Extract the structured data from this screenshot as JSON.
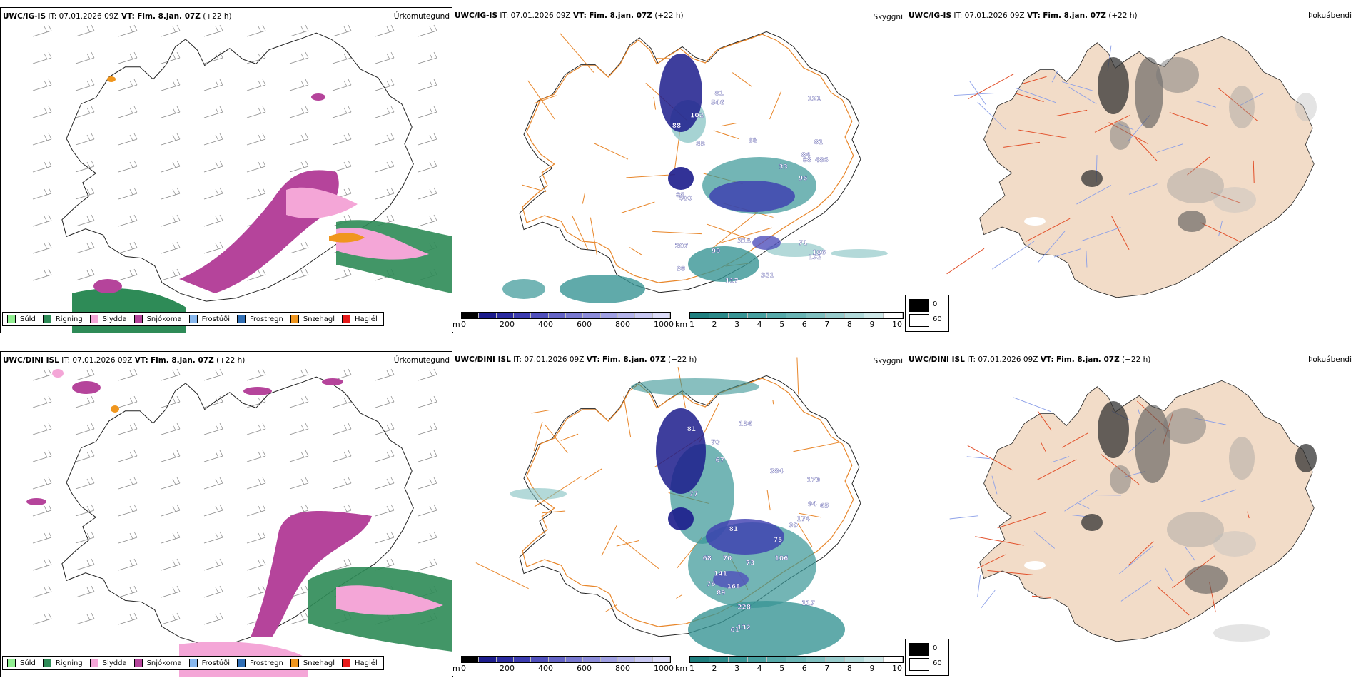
{
  "rows": [
    {
      "model": "UWC/IG-IS",
      "it_label": "IT:",
      "it_value": "07.01.2026 09Z",
      "vt_label": "VT:",
      "vt_value": "Fim. 8.jan. 07Z",
      "lead": "(+22 h)",
      "precip_title": "Úrkomutegund",
      "cloud_title": "Skyggni",
      "fog_title": "Þokuábendi",
      "ceiling_labels": [
        "71",
        "81",
        "106",
        "88",
        "88",
        "81",
        "84",
        "99",
        "121",
        "88",
        "486",
        "88",
        "96",
        "117",
        "207",
        "102",
        "132",
        "546",
        "314",
        "88",
        "88",
        "400",
        "351",
        "33"
      ]
    },
    {
      "model": "UWC/DINI ISL",
      "it_label": "IT:",
      "it_value": "07.01.2026 09Z",
      "vt_label": "VT:",
      "vt_value": "Fim. 8.jan. 07Z",
      "lead": "(+22 h)",
      "precip_title": "Úrkomutegund",
      "cloud_title": "Skyggni",
      "fog_title": "Þokuábendi",
      "ceiling_labels": [
        "70",
        "70",
        "68",
        "81",
        "73",
        "179",
        "89",
        "168",
        "384",
        "228",
        "76",
        "117",
        "81",
        "132",
        "174",
        "106",
        "141",
        "94",
        "136",
        "77",
        "61",
        "99",
        "67",
        "75",
        "65"
      ]
    }
  ],
  "precip_legend": [
    {
      "label": "Súld",
      "color": "#90ee90"
    },
    {
      "label": "Rigning",
      "color": "#2e8b57"
    },
    {
      "label": "Slydda",
      "color": "#f4a6d7"
    },
    {
      "label": "Snjókoma",
      "color": "#b5449b"
    },
    {
      "label": "Frostúði",
      "color": "#87b7ee"
    },
    {
      "label": "Frostregn",
      "color": "#2f6eb5"
    },
    {
      "label": "Snæhagl",
      "color": "#f0961e"
    },
    {
      "label": "Haglél",
      "color": "#e61919"
    }
  ],
  "ceiling_scale": {
    "unit": "m",
    "ticks": [
      "0",
      "200",
      "400",
      "600",
      "800",
      "1000"
    ],
    "colors": [
      "#000000",
      "#1c1c8c",
      "#2a2aa0",
      "#3c3cb0",
      "#5050bc",
      "#6464c6",
      "#7878d0",
      "#8c8cda",
      "#a0a0e2",
      "#b4b4ea",
      "#c8c8f2",
      "#dcdcf8"
    ]
  },
  "visibility_scale": {
    "unit": "km",
    "ticks": [
      "1",
      "2",
      "3",
      "4",
      "5",
      "6",
      "7",
      "8",
      "9",
      "10"
    ],
    "colors": [
      "#1f7f7f",
      "#2b8a8a",
      "#389595",
      "#47a0a0",
      "#57aaaa",
      "#6ab5b5",
      "#80c0c0",
      "#98cccc",
      "#b2dada",
      "#cfe8e8",
      "#ffffff"
    ]
  },
  "fog_legend": [
    {
      "label": "0",
      "color": "#000000"
    },
    {
      "label": "60",
      "color": "#ffffff"
    }
  ],
  "colors": {
    "map_outline": "#222222",
    "wind_barb": "#8a8a8a",
    "roads": "#e8862a",
    "land_fog": "#f2dcc8",
    "rivers": "#8b9fe8",
    "fog_roads": "#e2502a"
  }
}
